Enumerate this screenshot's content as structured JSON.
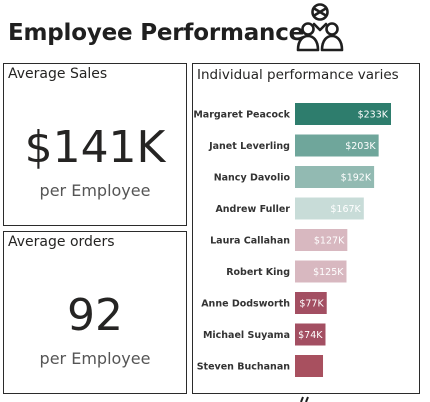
{
  "header": {
    "title": "Employee Performance",
    "icon": "team-people-icon"
  },
  "cards": {
    "sales": {
      "title": "Average Sales",
      "value": "$141K",
      "subtitle": "per Employee"
    },
    "orders": {
      "title": "Average orders",
      "value": "92",
      "subtitle": "per Employee"
    }
  },
  "chart_panel": {
    "title": "Individual performance varies"
  },
  "chart_data": {
    "type": "bar",
    "orientation": "horizontal",
    "title": "Individual performance varies",
    "categories": [
      "Margaret Peacock",
      "Janet Leverling",
      "Nancy Davolio",
      "Andrew Fuller",
      "Laura Callahan",
      "Robert King",
      "Anne Dodsworth",
      "Michael Suyama",
      "Steven Buchanan"
    ],
    "values": [
      233,
      203,
      192,
      167,
      127,
      125,
      77,
      74,
      68
    ],
    "labels": [
      "$233K",
      "$203K",
      "$192K",
      "$167K",
      "$127K",
      "$125K",
      "$77K",
      "$74K",
      ""
    ],
    "unit": "K",
    "colors": [
      "#2e7d6d",
      "#6fa69b",
      "#92bab2",
      "#c8dcd8",
      "#d8b8c0",
      "#d8b8c0",
      "#a34f62",
      "#a34f62",
      "#a8505f"
    ],
    "xlim": [
      0,
      233
    ],
    "grid": false,
    "legend": "none"
  }
}
